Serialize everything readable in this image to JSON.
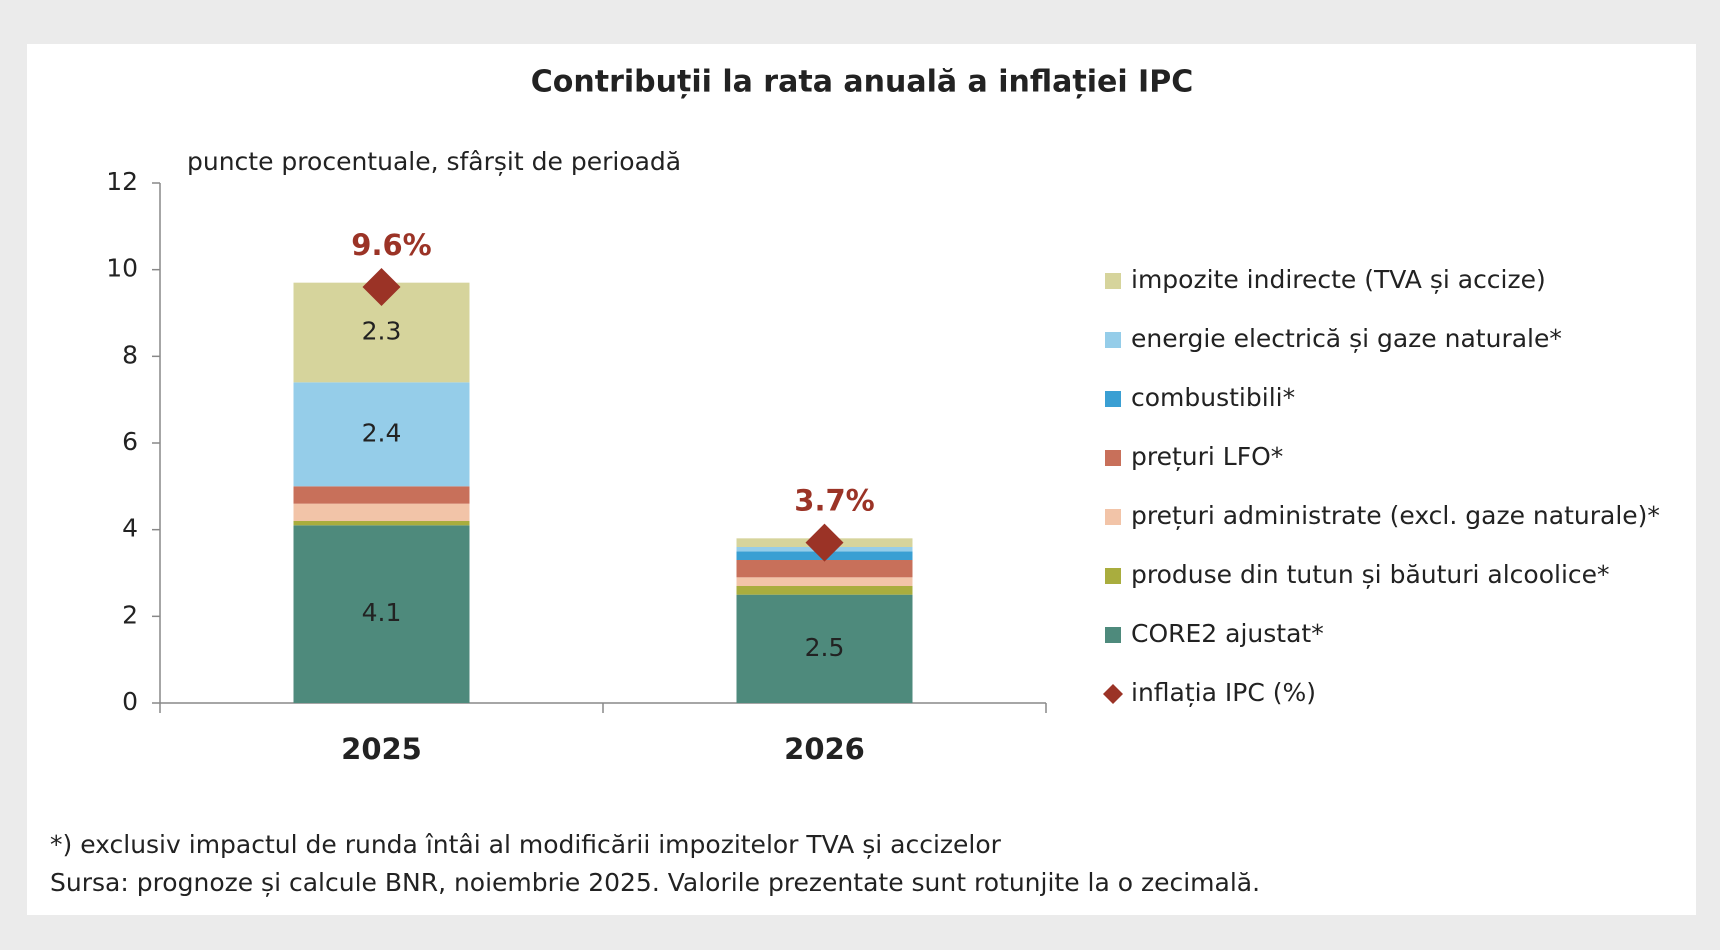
{
  "chart_data": {
    "type": "stacked_bar",
    "title": "Contribuții la rata anuală a inflației IPC",
    "subtitle": "puncte procentuale, sfârșit de perioadă",
    "categories": [
      "2025",
      "2026"
    ],
    "series": [
      {
        "name": "CORE2 ajustat*",
        "color": "#4e8a7c",
        "values": [
          4.1,
          2.5
        ]
      },
      {
        "name": "produse din tutun și băuturi alcoolice*",
        "color": "#a9ad3e",
        "values": [
          0.1,
          0.2
        ]
      },
      {
        "name": "prețuri administrate (excl. gaze naturale)*",
        "color": "#f2c4a8",
        "values": [
          0.4,
          0.2
        ]
      },
      {
        "name": "prețuri LFO*",
        "color": "#c8705a",
        "values": [
          0.4,
          0.4
        ]
      },
      {
        "name": "combustibili*",
        "color": "#3a9fd3",
        "values": [
          0,
          0.2
        ]
      },
      {
        "name": "energie electrică și gaze naturale*",
        "color": "#95cde9",
        "values": [
          2.4,
          0.1
        ]
      },
      {
        "name": "impozite indirecte (TVA și accize)",
        "color": "#d6d49c",
        "values": [
          2.3,
          0.2
        ]
      }
    ],
    "inflation": {
      "name": "inflația IPC (%)",
      "color": "#9b3326",
      "values": [
        9.6,
        3.7
      ],
      "value_labels": [
        "9.6%",
        "3.7%"
      ]
    },
    "ylim": [
      0,
      12
    ],
    "yticks": [
      0,
      2,
      4,
      6,
      8,
      10,
      12
    ],
    "grid": false,
    "notes": [
      "*) exclusiv impactul de runda întâi al modificării impozitelor TVA și accizelor",
      "Sursa: prognoze și calcule BNR, noiembrie 2025. Valorile prezentate sunt rotunjite la o zecimală."
    ]
  }
}
